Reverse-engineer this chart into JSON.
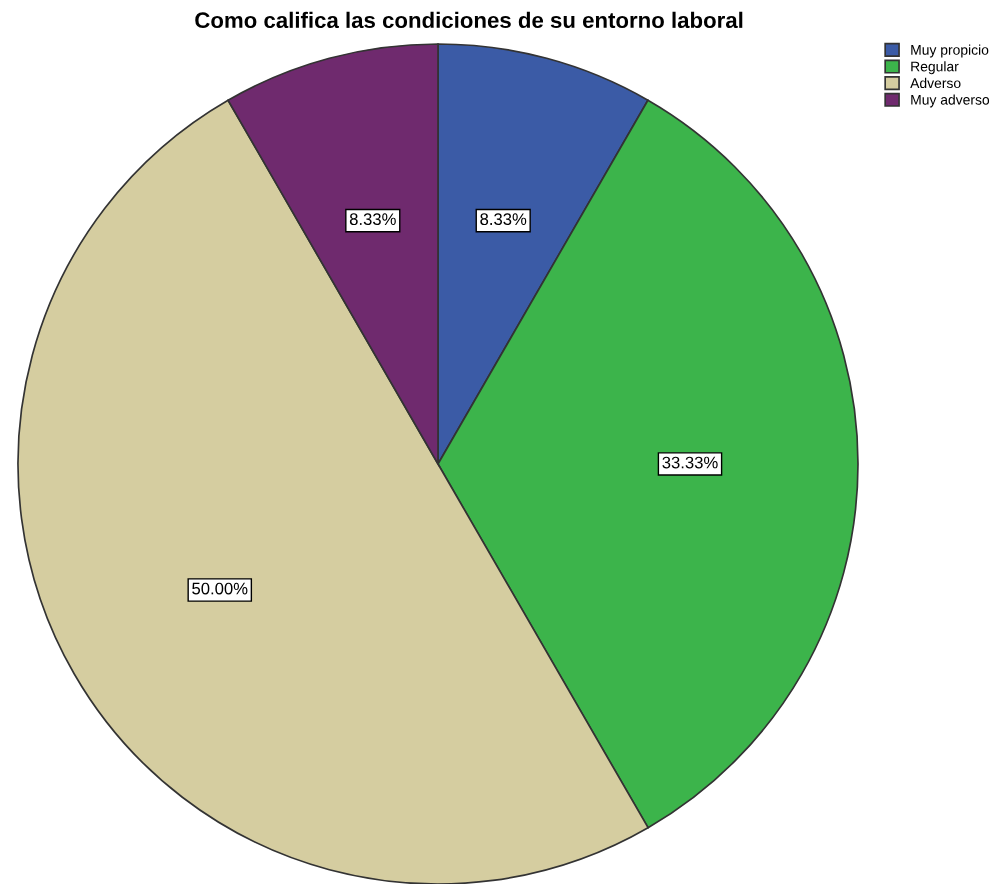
{
  "chart_data": {
    "type": "pie",
    "title": "Como califica las condiciones de su entorno laboral",
    "categories": [
      "Muy propicio",
      "Regular",
      "Adverso",
      "Muy adverso"
    ],
    "values": [
      8.33,
      33.33,
      50.0,
      8.33
    ],
    "value_labels": [
      "8.33%",
      "33.33%",
      "50.00%",
      "8.33%"
    ],
    "colors": [
      "#3b5ba6",
      "#3cb44b",
      "#d5cda0",
      "#6f2a6e"
    ],
    "legend": "top right"
  }
}
